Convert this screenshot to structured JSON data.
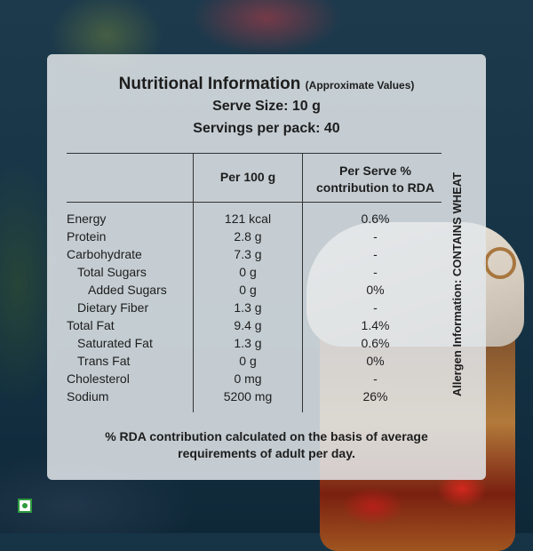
{
  "label": {
    "title": "Nutritional Information",
    "title_note": "(Approximate Values)",
    "serve_size": "Serve Size: 10 g",
    "servings_per_pack": "Servings per pack: 40"
  },
  "table": {
    "col_per100": "Per 100 g",
    "col_serve_line1": "Per Serve %",
    "col_serve_line2": "contribution to RDA",
    "rows": [
      {
        "name": "Energy",
        "per100": "121 kcal",
        "serve": "0.6%"
      },
      {
        "name": "Protein",
        "per100": "2.8 g",
        "serve": "-"
      },
      {
        "name": "Carbohydrate",
        "per100": "7.3 g",
        "serve": "-"
      },
      {
        "name": "Total Sugars",
        "per100": "0 g",
        "serve": "-"
      },
      {
        "name": "Added Sugars",
        "per100": "0 g",
        "serve": "0%"
      },
      {
        "name": "Dietary Fiber",
        "per100": "1.3 g",
        "serve": "-"
      },
      {
        "name": "Total Fat",
        "per100": "9.4 g",
        "serve": "1.4%"
      },
      {
        "name": "Saturated Fat",
        "per100": "1.3 g",
        "serve": "0.6%"
      },
      {
        "name": "Trans Fat",
        "per100": "0 g",
        "serve": "0%"
      },
      {
        "name": "Cholesterol",
        "per100": "0 mg",
        "serve": "-"
      },
      {
        "name": "Sodium",
        "per100": "5200 mg",
        "serve": "26%"
      }
    ]
  },
  "footer": {
    "line1": "% RDA contribution calculated on the basis of average",
    "line2": "requirements of adult per day."
  },
  "allergen": "Allergen Information: CONTAINS WHEAT",
  "marks": {
    "veg_icon": "veg-symbol-icon",
    "veg_color": "#2e9a3e"
  }
}
